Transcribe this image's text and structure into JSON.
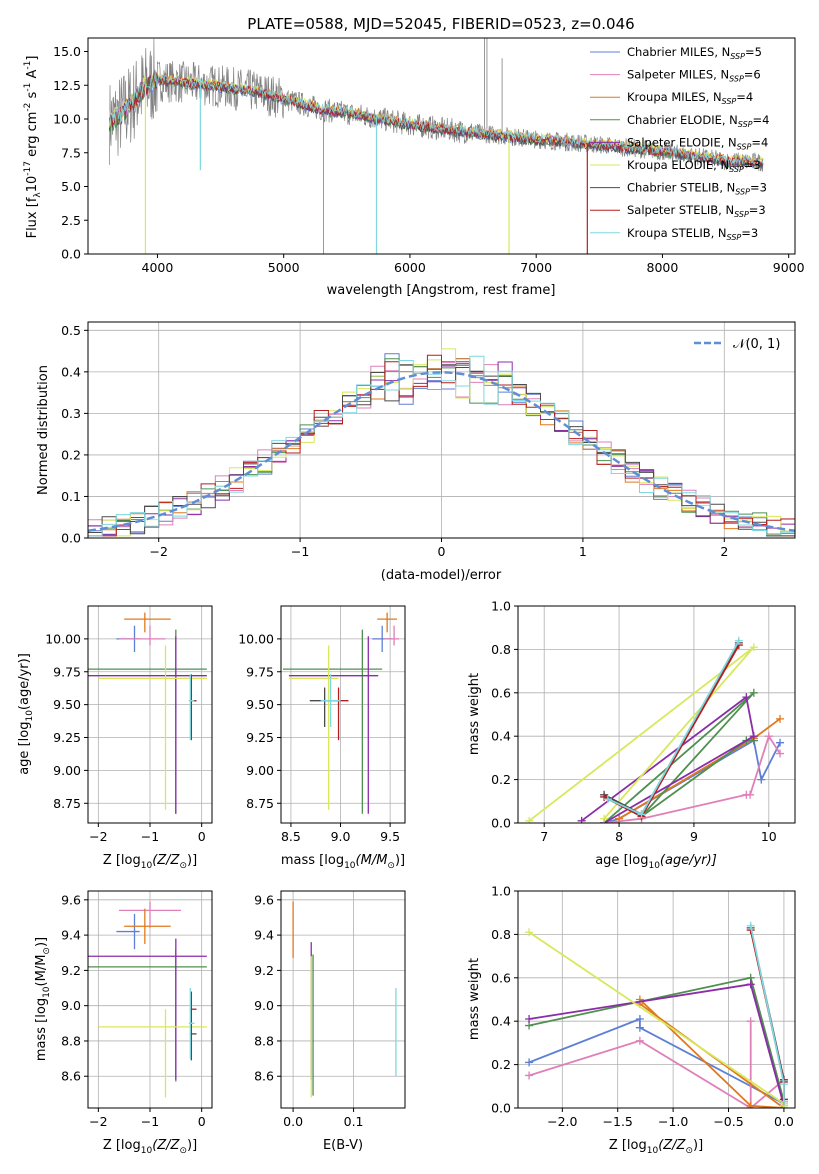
{
  "colors": {
    "chabrier_miles": "#5e7fd6",
    "salpeter_miles": "#e07fb8",
    "kroupa_miles": "#e0791e",
    "chabrier_elodie": "#4f8f4f",
    "salpeter_elodie": "#8b2da8",
    "kroupa_elodie": "#d8e85a",
    "chabrier_stelib": "#4b4b4b",
    "salpeter_stelib": "#b51f1f",
    "kroupa_stelib": "#7fd7df",
    "data": "#808080",
    "normal": "#5e8fd6",
    "grid": "#b0b0b0"
  },
  "chart_data": [
    {
      "id": "spectrum",
      "type": "line",
      "title": "PLATE=0588, MJD=52045, FIBERID=0523, z=0.046",
      "xlabel": "wavelength [Angstrom, rest frame]",
      "ylabel": "Flux [f",
      "ylabel_sub": "λ",
      "ylabel_mid": "10",
      "ylabel_sup1": "-17",
      "ylabel_rest": " erg cm",
      "ylabel_sup2": "-2",
      "ylabel_rest2": " s",
      "ylabel_sup3": "-1",
      "ylabel_rest3": " A",
      "ylabel_sup4": "-1",
      "ylabel_end": "]",
      "xlim": [
        3450,
        9050
      ],
      "ylim": [
        0,
        16
      ],
      "xticks": [
        "4000",
        "5000",
        "6000",
        "7000",
        "8000",
        "9000"
      ],
      "yticks": [
        "0.0",
        "2.5",
        "5.0",
        "7.5",
        "10.0",
        "12.5",
        "15.0"
      ],
      "grid": false,
      "legend_position": "top-right",
      "legend": [
        {
          "prefix": "Chabrier MILES, N",
          "sub": "SSP",
          "suffix": "=5"
        },
        {
          "prefix": "Salpeter MILES, N",
          "sub": "SSP",
          "suffix": "=6"
        },
        {
          "prefix": "Kroupa MILES, N",
          "sub": "SSP",
          "suffix": "=4"
        },
        {
          "prefix": "Chabrier ELODIE, N",
          "sub": "SSP",
          "suffix": "=4"
        },
        {
          "prefix": "Salpeter ELODIE, N",
          "sub": "SSP",
          "suffix": "=4"
        },
        {
          "prefix": "Kroupa ELODIE, N",
          "sub": "SSP",
          "suffix": "=3"
        },
        {
          "prefix": "Chabrier STELIB, N",
          "sub": "SSP",
          "suffix": "=3"
        },
        {
          "prefix": "Salpeter STELIB, N",
          "sub": "SSP",
          "suffix": "=3"
        },
        {
          "prefix": "Kroupa STELIB, N",
          "sub": "SSP",
          "suffix": "=3"
        }
      ],
      "continuum": [
        [
          3620,
          9.8
        ],
        [
          3700,
          10.2
        ],
        [
          3800,
          11.2
        ],
        [
          3900,
          12.4
        ],
        [
          4000,
          12.9
        ],
        [
          4200,
          12.7
        ],
        [
          4500,
          12.4
        ],
        [
          4800,
          12.0
        ],
        [
          5000,
          11.5
        ],
        [
          5300,
          10.7
        ],
        [
          5600,
          10.3
        ],
        [
          6000,
          9.6
        ],
        [
          6300,
          9.2
        ],
        [
          6600,
          8.9
        ],
        [
          7000,
          8.5
        ],
        [
          7500,
          8.1
        ],
        [
          8000,
          7.6
        ],
        [
          8500,
          6.9
        ],
        [
          8800,
          6.8
        ]
      ],
      "model_spikes": [
        [
          3905,
          0.0
        ],
        [
          4340,
          6.2
        ],
        [
          5735,
          0.0
        ],
        [
          6785,
          0.0
        ],
        [
          7405,
          0.0
        ]
      ],
      "data_spikes": [
        [
          5315,
          0.0
        ],
        [
          6590,
          16.0
        ],
        [
          6610,
          16.0
        ],
        [
          6730,
          14.5
        ]
      ]
    },
    {
      "id": "residual-histogram",
      "type": "histogram",
      "xlabel": "(data-model)/error",
      "ylabel": "Normed distribution",
      "xlim": [
        -2.5,
        2.5
      ],
      "ylim": [
        0,
        0.52
      ],
      "xticks": [
        "−2",
        "−1",
        "0",
        "1",
        "2"
      ],
      "yticks": [
        "0.0",
        "0.1",
        "0.2",
        "0.3",
        "0.4",
        "0.5"
      ],
      "grid": true,
      "legend_position": "top-right",
      "normal_label": "𝒩(0, 1)",
      "bin_width": 0.1,
      "bin_start": -2.5
    },
    {
      "id": "age-vs-Z",
      "type": "errorbar",
      "xlabel": "Z [log",
      "xlabel_sub": "10",
      "xlabel_rest": "(Z/Z",
      "xlabel_sub2": "⊙",
      "xlabel_end": ")]",
      "ylabel": "age  [log",
      "ylabel_sub": "10",
      "ylabel_rest": "(age/yr)]",
      "xlim": [
        -2.2,
        0.2
      ],
      "ylim": [
        8.6,
        10.25
      ],
      "xticks": [
        "−2",
        "−1",
        "0"
      ],
      "yticks": [
        "8.75",
        "9.00",
        "9.25",
        "9.50",
        "9.75",
        "10.00"
      ],
      "points": [
        {
          "series": "chabrier_miles",
          "x": -1.3,
          "y": 10.0,
          "xerr": [
            0.35,
            0.1
          ],
          "yerr": [
            0.1,
            0.1
          ]
        },
        {
          "series": "salpeter_miles",
          "x": -1.0,
          "y": 10.0,
          "xerr": [
            0.6,
            0.3
          ],
          "yerr": [
            0.05,
            0.1
          ]
        },
        {
          "series": "kroupa_miles",
          "x": -1.1,
          "y": 10.15,
          "xerr": [
            0.4,
            0.5
          ],
          "yerr": [
            0.1,
            0.05
          ]
        },
        {
          "series": "chabrier_elodie",
          "x": -0.5,
          "y": 9.77,
          "xerr": [
            1.7,
            0.6
          ],
          "yerr": [
            1.1,
            0.3
          ]
        },
        {
          "series": "salpeter_elodie",
          "x": -0.5,
          "y": 9.72,
          "xerr": [
            1.7,
            0.6
          ],
          "yerr": [
            1.05,
            0.3
          ]
        },
        {
          "series": "kroupa_elodie",
          "x": -0.7,
          "y": 9.7,
          "xerr": [
            1.3,
            0.8
          ],
          "yerr": [
            1.0,
            0.25
          ]
        },
        {
          "series": "chabrier_stelib",
          "x": -0.2,
          "y": 9.53,
          "xerr": [
            0.03,
            0.1
          ],
          "yerr": [
            0.3,
            0.2
          ]
        },
        {
          "series": "salpeter_stelib",
          "x": -0.2,
          "y": 9.53,
          "xerr": [
            0.03,
            0.1
          ],
          "yerr": [
            0.25,
            0.15
          ]
        },
        {
          "series": "kroupa_stelib",
          "x": -0.22,
          "y": 9.53,
          "xerr": [
            0.03,
            0.08
          ],
          "yerr": [
            0.3,
            0.2
          ]
        }
      ]
    },
    {
      "id": "age-vs-mass",
      "type": "errorbar",
      "xlabel": "mass [log",
      "xlabel_sub": "10",
      "xlabel_rest": "(M/M",
      "xlabel_sub2": "⊙",
      "xlabel_end": ")]",
      "xlim": [
        8.4,
        9.65
      ],
      "ylim": [
        8.6,
        10.25
      ],
      "xticks": [
        "8.5",
        "9.0",
        "9.5"
      ],
      "yticks": [
        "8.75",
        "9.00",
        "9.25",
        "9.50",
        "9.75",
        "10.00"
      ],
      "points": [
        {
          "series": "chabrier_miles",
          "x": 9.42,
          "y": 10.0,
          "xerr": [
            0.1,
            0.1
          ],
          "yerr": [
            0.1,
            0.1
          ]
        },
        {
          "series": "salpeter_miles",
          "x": 9.54,
          "y": 10.0,
          "xerr": [
            0.1,
            0.05
          ],
          "yerr": [
            0.05,
            0.1
          ]
        },
        {
          "series": "kroupa_miles",
          "x": 9.47,
          "y": 10.15,
          "xerr": [
            0.1,
            0.1
          ],
          "yerr": [
            0.1,
            0.05
          ]
        },
        {
          "series": "chabrier_elodie",
          "x": 9.22,
          "y": 9.77,
          "xerr": [
            0.8,
            0.2
          ],
          "yerr": [
            1.1,
            0.3
          ]
        },
        {
          "series": "salpeter_elodie",
          "x": 9.28,
          "y": 9.72,
          "xerr": [
            0.8,
            0.1
          ],
          "yerr": [
            1.05,
            0.3
          ]
        },
        {
          "series": "kroupa_elodie",
          "x": 8.88,
          "y": 9.7,
          "xerr": [
            0.4,
            0.1
          ],
          "yerr": [
            1.0,
            0.25
          ]
        },
        {
          "series": "chabrier_stelib",
          "x": 8.84,
          "y": 9.53,
          "xerr": [
            0.15,
            0.15
          ],
          "yerr": [
            0.2,
            0.1
          ]
        },
        {
          "series": "salpeter_stelib",
          "x": 8.98,
          "y": 9.53,
          "xerr": [
            0.1,
            0.1
          ],
          "yerr": [
            0.3,
            0.1
          ]
        },
        {
          "series": "kroupa_stelib",
          "x": 8.9,
          "y": 9.53,
          "xerr": [
            0.1,
            0.1
          ],
          "yerr": [
            0.2,
            0.2
          ]
        }
      ]
    },
    {
      "id": "weight-vs-age",
      "type": "line",
      "xlabel": "age  [log",
      "xlabel_sub": "10",
      "xlabel_rest": "(age/yr)]",
      "ylabel": "mass weight",
      "xlim": [
        6.65,
        10.35
      ],
      "ylim": [
        0,
        1
      ],
      "xticks": [
        "7",
        "8",
        "9",
        "10"
      ],
      "yticks": [
        "0.0",
        "0.2",
        "0.4",
        "0.6",
        "0.8",
        "1.0"
      ],
      "grid": true,
      "series": [
        {
          "key": "chabrier_miles",
          "x": [
            7.8,
            8.0,
            9.8,
            9.9,
            10.15
          ],
          "y": [
            0.0,
            0.02,
            0.38,
            0.2,
            0.37
          ]
        },
        {
          "key": "salpeter_miles",
          "x": [
            7.8,
            8.3,
            9.7,
            9.75,
            10.0,
            10.15
          ],
          "y": [
            0.0,
            0.02,
            0.13,
            0.13,
            0.4,
            0.32
          ]
        },
        {
          "key": "kroupa_miles",
          "x": [
            8.0,
            9.8,
            10.15
          ],
          "y": [
            0.02,
            0.39,
            0.48
          ]
        },
        {
          "key": "chabrier_elodie",
          "x": [
            7.8,
            9.8,
            8.3,
            9.7,
            9.8
          ],
          "y": [
            0.0,
            0.6,
            0.03,
            0.38,
            0.38
          ]
        },
        {
          "key": "salpeter_elodie",
          "x": [
            7.5,
            9.7,
            9.8,
            7.8
          ],
          "y": [
            0.01,
            0.58,
            0.4,
            0.0
          ]
        },
        {
          "key": "kroupa_elodie",
          "x": [
            6.8,
            9.8,
            7.8
          ],
          "y": [
            0.01,
            0.81,
            0.02
          ]
        },
        {
          "key": "chabrier_stelib",
          "x": [
            7.8,
            8.3,
            9.6
          ],
          "y": [
            0.13,
            0.04,
            0.83
          ]
        },
        {
          "key": "salpeter_stelib",
          "x": [
            7.8,
            8.3,
            9.6
          ],
          "y": [
            0.12,
            0.03,
            0.82
          ]
        },
        {
          "key": "kroupa_stelib",
          "x": [
            7.85,
            8.3,
            9.6
          ],
          "y": [
            0.11,
            0.04,
            0.84
          ]
        }
      ]
    },
    {
      "id": "mass-vs-Z",
      "type": "errorbar",
      "xlabel": "Z [log",
      "xlabel_sub": "10",
      "xlabel_rest": "(Z/Z",
      "xlabel_sub2": "⊙",
      "xlabel_end": ")]",
      "ylabel": "mass [log",
      "ylabel_sub": "10",
      "ylabel_rest": "(M/M",
      "ylabel_sub2": "⊙",
      "ylabel_end": ")]",
      "xlim": [
        -2.2,
        0.2
      ],
      "ylim": [
        8.42,
        9.65
      ],
      "xticks": [
        "−2",
        "−1",
        "0"
      ],
      "yticks": [
        "8.6",
        "8.8",
        "9.0",
        "9.2",
        "9.4",
        "9.6"
      ],
      "points": [
        {
          "series": "chabrier_miles",
          "x": -1.3,
          "y": 9.42,
          "xerr": [
            0.35,
            0.1
          ],
          "yerr": [
            0.1,
            0.1
          ]
        },
        {
          "series": "salpeter_miles",
          "x": -1.0,
          "y": 9.54,
          "xerr": [
            0.6,
            0.6
          ],
          "yerr": [
            0.1,
            0.05
          ]
        },
        {
          "series": "kroupa_miles",
          "x": -1.1,
          "y": 9.45,
          "xerr": [
            0.4,
            0.5
          ],
          "yerr": [
            0.1,
            0.1
          ]
        },
        {
          "series": "chabrier_elodie",
          "x": -0.5,
          "y": 9.22,
          "xerr": [
            1.7,
            0.6
          ],
          "yerr": [
            0.65,
            0.1
          ]
        },
        {
          "series": "salpeter_elodie",
          "x": -0.5,
          "y": 9.28,
          "xerr": [
            1.7,
            0.6
          ],
          "yerr": [
            0.7,
            0.1
          ]
        },
        {
          "series": "kroupa_elodie",
          "x": -0.7,
          "y": 8.88,
          "xerr": [
            1.3,
            0.8
          ],
          "yerr": [
            0.4,
            0.1
          ]
        },
        {
          "series": "chabrier_stelib",
          "x": -0.2,
          "y": 8.84,
          "xerr": [
            0.03,
            0.1
          ],
          "yerr": [
            0.15,
            0.15
          ]
        },
        {
          "series": "salpeter_stelib",
          "x": -0.2,
          "y": 8.98,
          "xerr": [
            0.03,
            0.1
          ],
          "yerr": [
            0.1,
            0.1
          ]
        },
        {
          "series": "kroupa_stelib",
          "x": -0.22,
          "y": 8.9,
          "xerr": [
            0.03,
            0.08
          ],
          "yerr": [
            0.2,
            0.2
          ]
        }
      ]
    },
    {
      "id": "mass-vs-EBV",
      "type": "errorbar",
      "xlabel": "E(B-V)",
      "xlim": [
        -0.02,
        0.185
      ],
      "ylim": [
        8.42,
        9.65
      ],
      "xticks": [
        "0.0",
        "0.1"
      ],
      "yticks": [
        "8.6",
        "8.8",
        "9.0",
        "9.2",
        "9.4",
        "9.6"
      ],
      "points": [
        {
          "series": "kroupa_miles",
          "x": 0.0,
          "y": 9.47,
          "xerr": [
            0.0,
            0.0
          ],
          "yerr": [
            0.2,
            0.12
          ]
        },
        {
          "series": "salpeter_elodie",
          "x": 0.03,
          "y": 9.28,
          "xerr": [
            0.0,
            0.0
          ],
          "yerr": [
            0.7,
            0.08
          ]
        },
        {
          "series": "chabrier_elodie",
          "x": 0.033,
          "y": 9.22,
          "xerr": [
            0.0,
            0.0
          ],
          "yerr": [
            0.73,
            0.07
          ]
        },
        {
          "series": "kroupa_elodie",
          "x": 0.03,
          "y": 8.88,
          "xerr": [
            0.0,
            0.0
          ],
          "yerr": [
            0.4,
            0.4
          ]
        },
        {
          "series": "kroupa_stelib",
          "x": 0.17,
          "y": 8.9,
          "xerr": [
            0.0,
            0.0
          ],
          "yerr": [
            0.3,
            0.2
          ]
        }
      ]
    },
    {
      "id": "weight-vs-Z",
      "type": "line",
      "xlabel": "Z [log",
      "xlabel_sub": "10",
      "xlabel_rest": "(Z/Z",
      "xlabel_sub2": "⊙",
      "xlabel_end": ")]",
      "ylabel": "mass weight",
      "xlim": [
        -2.4,
        0.1
      ],
      "ylim": [
        0,
        1
      ],
      "xticks": [
        "−2.0",
        "−1.5",
        "−1.0",
        "−0.5",
        "0.0"
      ],
      "yticks": [
        "0.0",
        "0.2",
        "0.4",
        "0.6",
        "0.8",
        "1.0"
      ],
      "grid": true,
      "series": [
        {
          "key": "chabrier_miles",
          "x": [
            -2.3,
            -1.3,
            -1.3,
            0.0,
            0.0
          ],
          "y": [
            0.21,
            0.41,
            0.37,
            0.02,
            0.0
          ]
        },
        {
          "key": "salpeter_miles",
          "x": [
            -2.3,
            -1.3,
            -0.3,
            -0.3,
            -0.3,
            0.0
          ],
          "y": [
            0.15,
            0.31,
            0.0,
            0.4,
            0.0,
            0.13
          ]
        },
        {
          "key": "kroupa_miles",
          "x": [
            -1.3,
            -0.3,
            0.0,
            -1.3
          ],
          "y": [
            0.5,
            0.01,
            0.0,
            0.48
          ]
        },
        {
          "key": "chabrier_elodie",
          "x": [
            -2.3,
            -0.3,
            0.0
          ],
          "y": [
            0.38,
            0.6,
            0.03
          ]
        },
        {
          "key": "salpeter_elodie",
          "x": [
            -2.3,
            -0.3,
            0.0
          ],
          "y": [
            0.41,
            0.57,
            0.01
          ]
        },
        {
          "key": "kroupa_elodie",
          "x": [
            -2.3,
            0.0,
            0.0
          ],
          "y": [
            0.81,
            0.02,
            0.01
          ]
        },
        {
          "key": "chabrier_stelib",
          "x": [
            -0.3,
            0.0,
            0.0
          ],
          "y": [
            0.83,
            0.13,
            0.03
          ]
        },
        {
          "key": "salpeter_stelib",
          "x": [
            -0.3,
            0.0,
            0.0
          ],
          "y": [
            0.82,
            0.12,
            0.04
          ]
        },
        {
          "key": "kroupa_stelib",
          "x": [
            -0.3,
            0.0,
            0.0
          ],
          "y": [
            0.84,
            0.11,
            0.03
          ]
        }
      ]
    }
  ]
}
